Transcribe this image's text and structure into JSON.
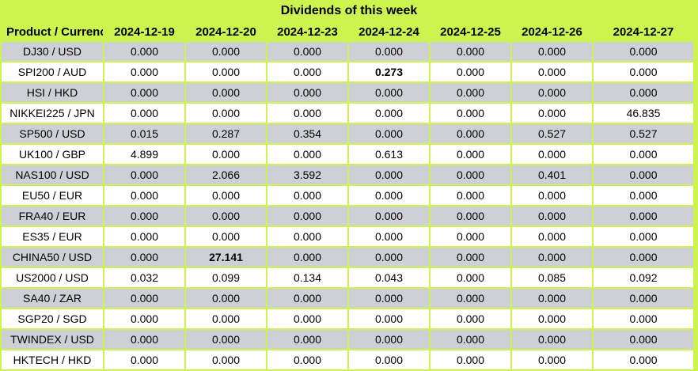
{
  "title": "Dividends of this week",
  "colors": {
    "accent_green": "#cdf34f",
    "row_gray": "#ced0d6",
    "row_white": "#ffffff",
    "text": "#000000"
  },
  "chart_data": {
    "type": "table",
    "title": "Dividends of this week",
    "categories": [
      "2024-12-19",
      "2024-12-20",
      "2024-12-23",
      "2024-12-24",
      "2024-12-25",
      "2024-12-26",
      "2024-12-27"
    ],
    "series": [
      {
        "name": "DJ30 / USD",
        "values": [
          0.0,
          0.0,
          0.0,
          0.0,
          0.0,
          0.0,
          0.0
        ]
      },
      {
        "name": "SPI200 / AUD",
        "values": [
          0.0,
          0.0,
          0.0,
          0.273,
          0.0,
          0.0,
          0.0
        ]
      },
      {
        "name": "HSI / HKD",
        "values": [
          0.0,
          0.0,
          0.0,
          0.0,
          0.0,
          0.0,
          0.0
        ]
      },
      {
        "name": "NIKKEI225 / JPN",
        "values": [
          0.0,
          0.0,
          0.0,
          0.0,
          0.0,
          0.0,
          46.835
        ]
      },
      {
        "name": "SP500 / USD",
        "values": [
          0.015,
          0.287,
          0.354,
          0.0,
          0.0,
          0.527,
          0.527
        ]
      },
      {
        "name": "UK100 / GBP",
        "values": [
          4.899,
          0.0,
          0.0,
          0.613,
          0.0,
          0.0,
          0.0
        ]
      },
      {
        "name": "NAS100 / USD",
        "values": [
          0.0,
          2.066,
          3.592,
          0.0,
          0.0,
          0.401,
          0.0
        ]
      },
      {
        "name": "EU50 / EUR",
        "values": [
          0.0,
          0.0,
          0.0,
          0.0,
          0.0,
          0.0,
          0.0
        ]
      },
      {
        "name": "FRA40 / EUR",
        "values": [
          0.0,
          0.0,
          0.0,
          0.0,
          0.0,
          0.0,
          0.0
        ]
      },
      {
        "name": "ES35 / EUR",
        "values": [
          0.0,
          0.0,
          0.0,
          0.0,
          0.0,
          0.0,
          0.0
        ]
      },
      {
        "name": "CHINA50 / USD",
        "values": [
          0.0,
          27.141,
          0.0,
          0.0,
          0.0,
          0.0,
          0.0
        ]
      },
      {
        "name": "US2000 / USD",
        "values": [
          0.032,
          0.099,
          0.134,
          0.043,
          0.0,
          0.085,
          0.092
        ]
      },
      {
        "name": "SA40 / ZAR",
        "values": [
          0.0,
          0.0,
          0.0,
          0.0,
          0.0,
          0.0,
          0.0
        ]
      },
      {
        "name": "SGP20 / SGD",
        "values": [
          0.0,
          0.0,
          0.0,
          0.0,
          0.0,
          0.0,
          0.0
        ]
      },
      {
        "name": "TWINDEX / USD",
        "values": [
          0.0,
          0.0,
          0.0,
          0.0,
          0.0,
          0.0,
          0.0
        ]
      },
      {
        "name": "HKTECH / HKD",
        "values": [
          0.0,
          0.0,
          0.0,
          0.0,
          0.0,
          0.0,
          0.0
        ]
      }
    ]
  },
  "table": {
    "product_header": "Product / Currency",
    "date_headers": [
      "2024-12-19",
      "2024-12-20",
      "2024-12-23",
      "2024-12-24",
      "2024-12-25",
      "2024-12-26",
      "2024-12-27"
    ],
    "rows": [
      {
        "product": "DJ30 / USD",
        "values": [
          "0.000",
          "0.000",
          "0.000",
          "0.000",
          "0.000",
          "0.000",
          "0.000"
        ],
        "bold_indices": []
      },
      {
        "product": "SPI200 / AUD",
        "values": [
          "0.000",
          "0.000",
          "0.000",
          "0.273",
          "0.000",
          "0.000",
          "0.000"
        ],
        "bold_indices": [
          3
        ]
      },
      {
        "product": "HSI / HKD",
        "values": [
          "0.000",
          "0.000",
          "0.000",
          "0.000",
          "0.000",
          "0.000",
          "0.000"
        ],
        "bold_indices": []
      },
      {
        "product": "NIKKEI225 / JPN",
        "values": [
          "0.000",
          "0.000",
          "0.000",
          "0.000",
          "0.000",
          "0.000",
          "46.835"
        ],
        "bold_indices": []
      },
      {
        "product": "SP500 / USD",
        "values": [
          "0.015",
          "0.287",
          "0.354",
          "0.000",
          "0.000",
          "0.527",
          "0.527"
        ],
        "bold_indices": []
      },
      {
        "product": "UK100 / GBP",
        "values": [
          "4.899",
          "0.000",
          "0.000",
          "0.613",
          "0.000",
          "0.000",
          "0.000"
        ],
        "bold_indices": []
      },
      {
        "product": "NAS100 / USD",
        "values": [
          "0.000",
          "2.066",
          "3.592",
          "0.000",
          "0.000",
          "0.401",
          "0.000"
        ],
        "bold_indices": []
      },
      {
        "product": "EU50 / EUR",
        "values": [
          "0.000",
          "0.000",
          "0.000",
          "0.000",
          "0.000",
          "0.000",
          "0.000"
        ],
        "bold_indices": []
      },
      {
        "product": "FRA40 / EUR",
        "values": [
          "0.000",
          "0.000",
          "0.000",
          "0.000",
          "0.000",
          "0.000",
          "0.000"
        ],
        "bold_indices": []
      },
      {
        "product": "ES35 / EUR",
        "values": [
          "0.000",
          "0.000",
          "0.000",
          "0.000",
          "0.000",
          "0.000",
          "0.000"
        ],
        "bold_indices": []
      },
      {
        "product": "CHINA50 / USD",
        "values": [
          "0.000",
          "27.141",
          "0.000",
          "0.000",
          "0.000",
          "0.000",
          "0.000"
        ],
        "bold_indices": [
          1
        ]
      },
      {
        "product": "US2000 / USD",
        "values": [
          "0.032",
          "0.099",
          "0.134",
          "0.043",
          "0.000",
          "0.085",
          "0.092"
        ],
        "bold_indices": []
      },
      {
        "product": "SA40 / ZAR",
        "values": [
          "0.000",
          "0.000",
          "0.000",
          "0.000",
          "0.000",
          "0.000",
          "0.000"
        ],
        "bold_indices": []
      },
      {
        "product": "SGP20 / SGD",
        "values": [
          "0.000",
          "0.000",
          "0.000",
          "0.000",
          "0.000",
          "0.000",
          "0.000"
        ],
        "bold_indices": []
      },
      {
        "product": "TWINDEX / USD",
        "values": [
          "0.000",
          "0.000",
          "0.000",
          "0.000",
          "0.000",
          "0.000",
          "0.000"
        ],
        "bold_indices": []
      },
      {
        "product": "HKTECH / HKD",
        "values": [
          "0.000",
          "0.000",
          "0.000",
          "0.000",
          "0.000",
          "0.000",
          "0.000"
        ],
        "bold_indices": []
      }
    ]
  }
}
